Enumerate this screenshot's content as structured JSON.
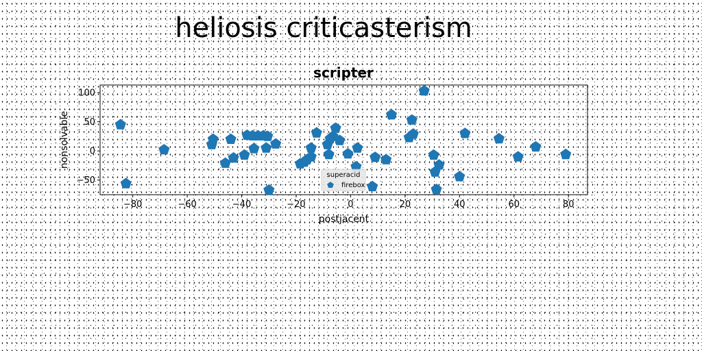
{
  "page_title": "heliosis criticasterism",
  "chart_data": {
    "type": "scatter",
    "title": "scripter",
    "xlabel": "postjacent",
    "ylabel": "nonsolvable",
    "xlim": [
      -92,
      87
    ],
    "ylim": [
      -75,
      113
    ],
    "xticks": [
      -80,
      -60,
      -40,
      -20,
      0,
      20,
      40,
      60,
      80
    ],
    "yticks": [
      -50,
      0,
      50,
      100
    ],
    "grid": false,
    "legend": {
      "title": "superacid",
      "placement": "bottom-center"
    },
    "color": "#1f77b4",
    "series": [
      {
        "name": "firebox",
        "marker": "pentagon",
        "points": [
          [
            -84.5,
            45
          ],
          [
            -82.5,
            -56
          ],
          [
            -68.5,
            2
          ],
          [
            -51,
            11
          ],
          [
            -50.5,
            20
          ],
          [
            -46,
            -21
          ],
          [
            -44,
            20
          ],
          [
            -43,
            -12
          ],
          [
            -39,
            -7
          ],
          [
            -38,
            27
          ],
          [
            -36,
            26
          ],
          [
            -35.5,
            4
          ],
          [
            -34,
            26
          ],
          [
            -32,
            26
          ],
          [
            -31,
            5
          ],
          [
            -30.5,
            25
          ],
          [
            -30,
            -67
          ],
          [
            -27.5,
            12
          ],
          [
            -18.5,
            -22
          ],
          [
            -17,
            -19
          ],
          [
            -16,
            -15
          ],
          [
            -14.5,
            -10
          ],
          [
            -14.5,
            5
          ],
          [
            -12.5,
            31
          ],
          [
            -8.5,
            11
          ],
          [
            -8,
            -6
          ],
          [
            -7.5,
            21
          ],
          [
            -6.5,
            25
          ],
          [
            -5.5,
            39
          ],
          [
            -4,
            18
          ],
          [
            -1,
            -5
          ],
          [
            2,
            -27
          ],
          [
            2.5,
            5
          ],
          [
            8,
            -61
          ],
          [
            9,
            -11
          ],
          [
            13,
            -15
          ],
          [
            15,
            62
          ],
          [
            21.5,
            23
          ],
          [
            22.5,
            53
          ],
          [
            23,
            29
          ],
          [
            27,
            103
          ],
          [
            30.5,
            -7
          ],
          [
            31,
            -36
          ],
          [
            31.5,
            -66
          ],
          [
            32.5,
            -24
          ],
          [
            40,
            -44
          ],
          [
            42,
            30
          ],
          [
            54.5,
            21
          ],
          [
            61.5,
            -10
          ],
          [
            68,
            7
          ],
          [
            79,
            -6
          ]
        ]
      }
    ]
  }
}
